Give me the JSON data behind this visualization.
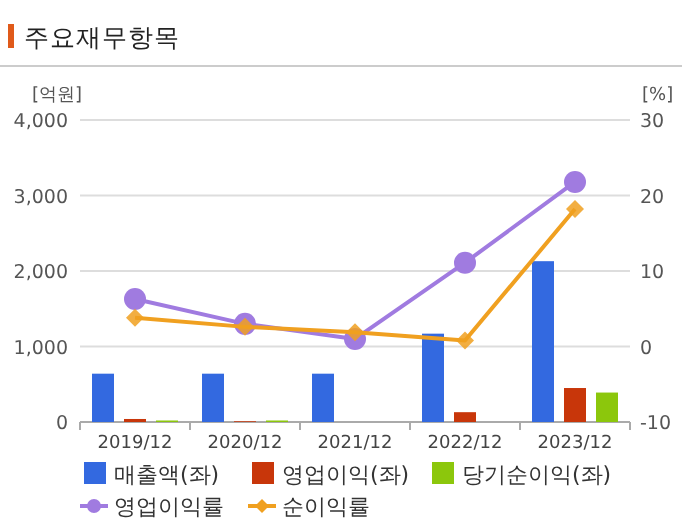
{
  "chart_data": {
    "type": "bar",
    "title": "주요재무항목",
    "ylabel": "[억원]",
    "y2label": "[%]",
    "categories": [
      "2019/12",
      "2020/12",
      "2021/12",
      "2022/12",
      "2023/12"
    ],
    "series": [
      {
        "name": "매출액(좌)",
        "color": "#3369e0",
        "values": [
          640,
          640,
          640,
          1170,
          2130
        ]
      },
      {
        "name": "영업이익(좌)",
        "color": "#c8360a",
        "values": [
          40,
          10,
          0,
          130,
          450
        ]
      },
      {
        "name": "당기순이익(좌)",
        "color": "#8cc70c",
        "values": [
          20,
          20,
          0,
          0,
          390
        ]
      },
      {
        "name": "영업이익률",
        "type": "line",
        "axis": "y2",
        "color": "#a07be0",
        "marker": "circle",
        "values": [
          6.3,
          3.0,
          1.0,
          11.1,
          21.8
        ]
      },
      {
        "name": "순이익률",
        "type": "line",
        "axis": "y2",
        "color": "#f0a020",
        "marker": "diamond",
        "values": [
          3.8,
          2.6,
          1.9,
          0.8,
          18.2
        ]
      }
    ],
    "ylim": [
      0,
      4000
    ],
    "yticks": [
      0,
      {
        "value": 1000,
        "label": "1,000"
      },
      {
        "value": 2000,
        "label": "2,000"
      },
      {
        "value": 3000,
        "label": "3,000"
      },
      {
        "value": 4000,
        "label": "4,000"
      }
    ],
    "y2lim": [
      -10,
      30
    ],
    "y2ticks": [
      -10,
      0,
      10,
      20,
      30
    ],
    "grid": "y",
    "legend": "bottom"
  }
}
